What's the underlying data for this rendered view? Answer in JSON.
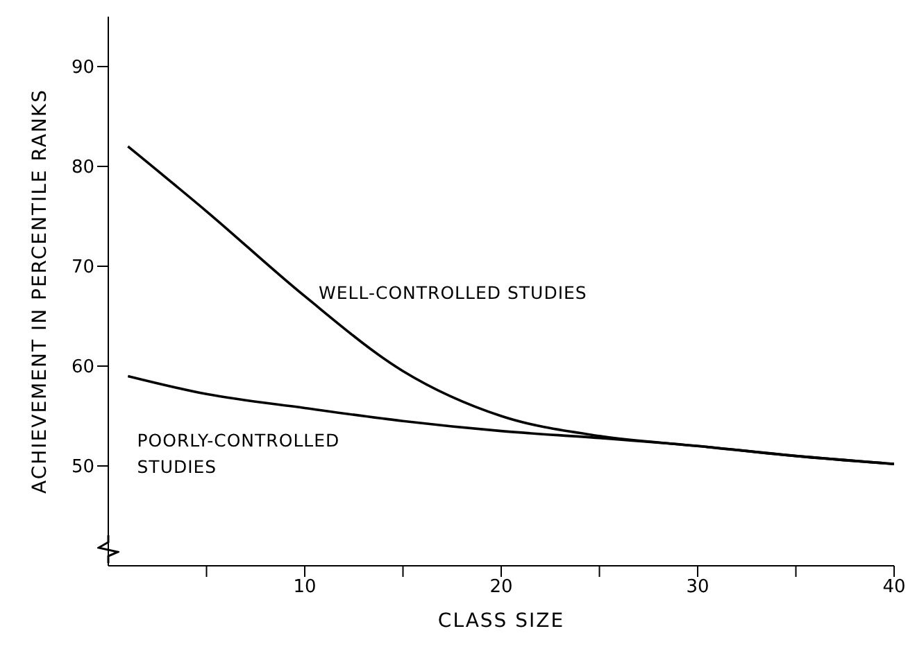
{
  "chart_data": {
    "type": "line",
    "xlabel": "CLASS SIZE",
    "ylabel": "ACHIEVEMENT IN PERCENTILE RANKS",
    "xlim": [
      0,
      40
    ],
    "ylim": [
      40,
      95
    ],
    "xticks": [
      {
        "value": 5,
        "label": null
      },
      10,
      {
        "value": 15,
        "label": null
      },
      20,
      {
        "value": 25,
        "label": null
      },
      30,
      {
        "value": 35,
        "label": null
      },
      40
    ],
    "yticks": [
      50,
      60,
      70,
      80,
      90
    ],
    "x": [
      1,
      5,
      10,
      15,
      20,
      25,
      30,
      35,
      40
    ],
    "series": [
      {
        "name": "WELL-CONTROLLED STUDIES",
        "color": "#000000",
        "values": [
          82,
          75.5,
          67,
          59.5,
          55,
          53,
          52,
          51,
          50.2
        ]
      },
      {
        "name": "POORLY-CONTROLLED STUDIES",
        "color": "#000000",
        "values": [
          59,
          57.2,
          55.8,
          54.5,
          53.5,
          52.8,
          52,
          51,
          50.2
        ]
      }
    ],
    "grid": false,
    "legend": false,
    "marker": "none",
    "line_style": "solid"
  }
}
